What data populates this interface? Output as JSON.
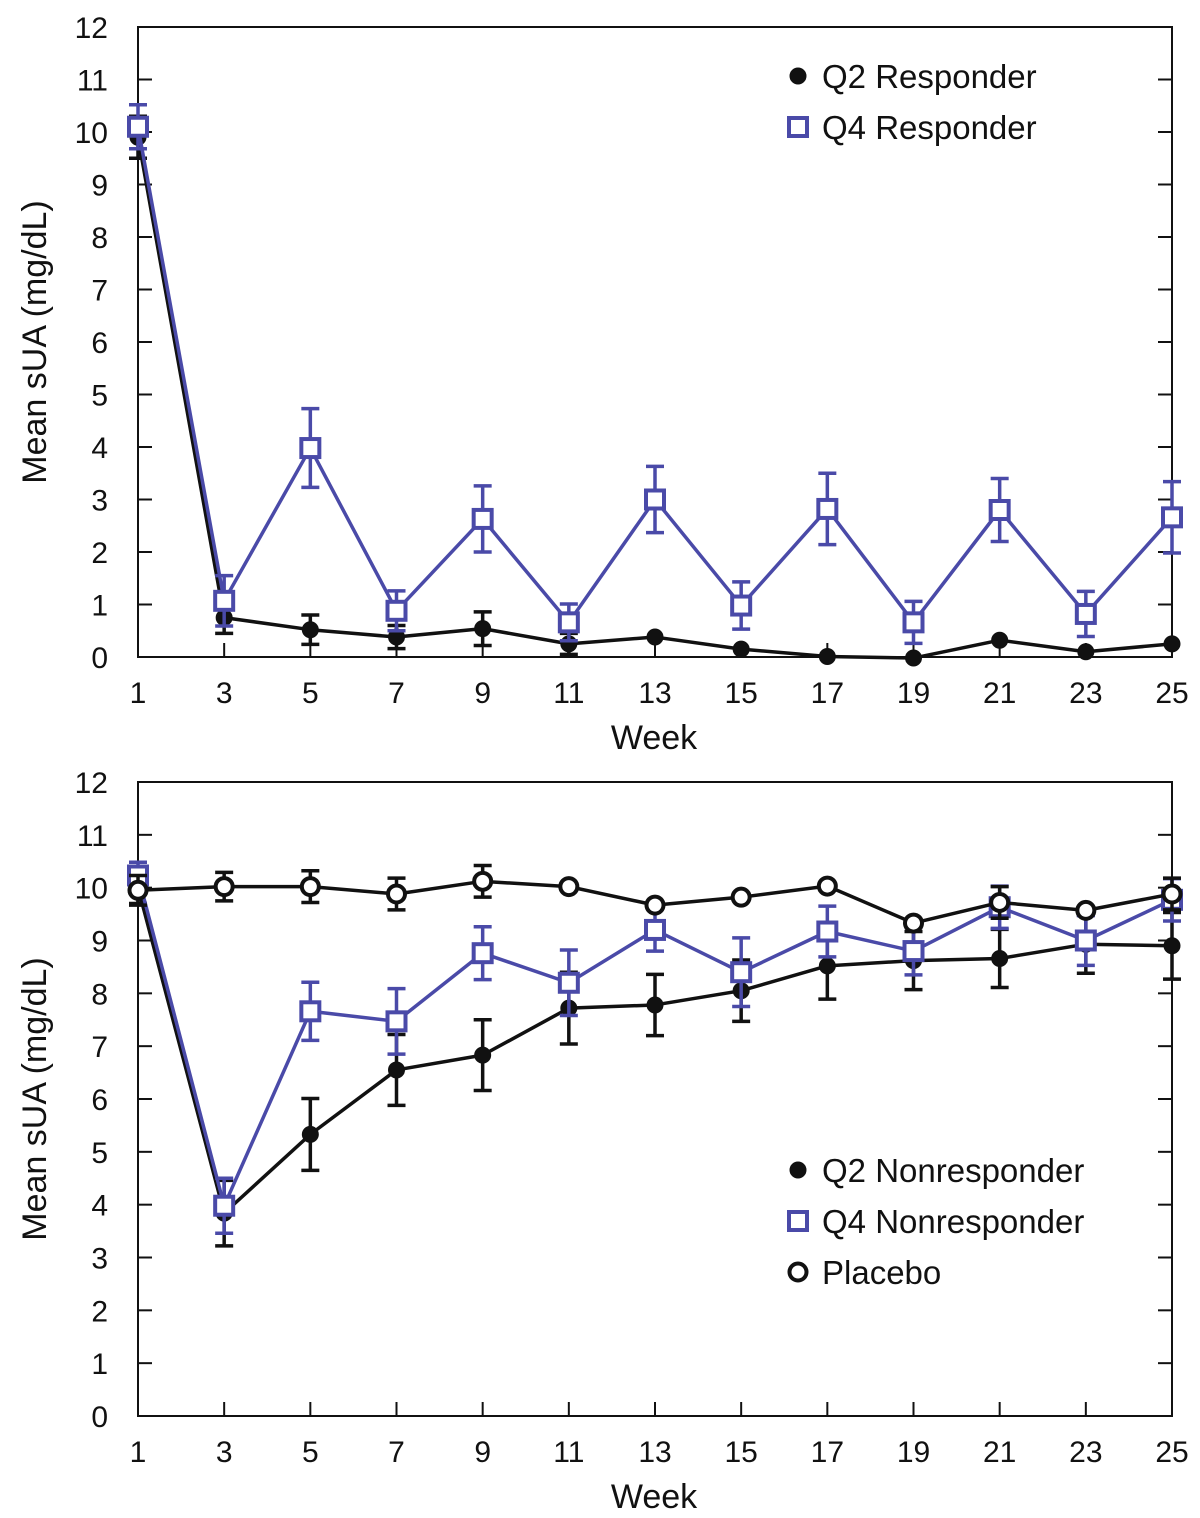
{
  "colors": {
    "black": "#111111",
    "blue": "#4a4aa8"
  },
  "chart_data": [
    {
      "type": "line",
      "title": "",
      "xlabel": "Week",
      "ylabel": "Mean sUA (mg/dL)",
      "xlim": [
        1,
        25
      ],
      "ylim": [
        0,
        12
      ],
      "xticks": [
        1,
        3,
        5,
        7,
        9,
        11,
        13,
        15,
        17,
        19,
        21,
        23,
        25
      ],
      "yticks": [
        0,
        1,
        2,
        3,
        4,
        5,
        6,
        7,
        8,
        9,
        10,
        11,
        12
      ],
      "grid": false,
      "legend_position": "top-right",
      "series": [
        {
          "name": "Q2 Responder",
          "marker": "filled-circle",
          "color": "#111111",
          "x": [
            1,
            3,
            5,
            7,
            9,
            11,
            13,
            15,
            17,
            19,
            21,
            23,
            25
          ],
          "y": [
            9.9,
            0.75,
            0.52,
            0.38,
            0.54,
            0.25,
            0.38,
            0.15,
            0.01,
            -0.02,
            0.32,
            0.1,
            0.25
          ],
          "error_up": [
            0.4,
            0.3,
            0.28,
            0.22,
            0.32,
            0.2,
            0,
            0,
            0,
            0,
            0,
            0,
            0
          ],
          "error_down": [
            0.4,
            0.3,
            0.28,
            0.22,
            0.32,
            0.2,
            0,
            0,
            0,
            0,
            0,
            0,
            0
          ]
        },
        {
          "name": "Q4 Responder",
          "marker": "open-square",
          "color": "#4a4aa8",
          "x": [
            1,
            3,
            5,
            7,
            9,
            11,
            13,
            15,
            17,
            19,
            21,
            23,
            25
          ],
          "y": [
            10.1,
            1.07,
            3.98,
            0.88,
            2.63,
            0.66,
            3.0,
            0.98,
            2.82,
            0.66,
            2.8,
            0.82,
            2.66
          ],
          "error_up": [
            0.42,
            0.48,
            0.75,
            0.38,
            0.63,
            0.35,
            0.63,
            0.45,
            0.68,
            0.4,
            0.6,
            0.43,
            0.68
          ],
          "error_down": [
            0.42,
            0.48,
            0.75,
            0.38,
            0.63,
            0.35,
            0.63,
            0.45,
            0.68,
            0.4,
            0.6,
            0.43,
            0.68
          ]
        }
      ]
    },
    {
      "type": "line",
      "title": "",
      "xlabel": "Week",
      "ylabel": "Mean sUA (mg/dL)",
      "xlim": [
        1,
        25
      ],
      "ylim": [
        0,
        12
      ],
      "xticks": [
        1,
        3,
        5,
        7,
        9,
        11,
        13,
        15,
        17,
        19,
        21,
        23,
        25
      ],
      "yticks": [
        0,
        1,
        2,
        3,
        4,
        5,
        6,
        7,
        8,
        9,
        10,
        11,
        12
      ],
      "grid": false,
      "legend_position": "bottom-right",
      "series": [
        {
          "name": "Q2 Nonresponder",
          "marker": "filled-circle",
          "color": "#111111",
          "x": [
            1,
            3,
            5,
            7,
            9,
            11,
            13,
            15,
            17,
            19,
            21,
            23,
            25
          ],
          "y": [
            10.0,
            3.84,
            5.33,
            6.55,
            6.83,
            7.72,
            7.78,
            8.05,
            8.52,
            8.62,
            8.66,
            8.93,
            8.9
          ],
          "error_up": [
            0.3,
            0.62,
            0.68,
            0.67,
            0.67,
            0.68,
            0.58,
            0.58,
            0.63,
            0.55,
            0.55,
            0.55,
            0.63
          ],
          "error_down": [
            0.3,
            0.62,
            0.68,
            0.67,
            0.67,
            0.68,
            0.58,
            0.58,
            0.63,
            0.55,
            0.55,
            0.55,
            0.63
          ]
        },
        {
          "name": "Q4 Nonresponder",
          "marker": "open-square",
          "color": "#4a4aa8",
          "x": [
            1,
            3,
            5,
            7,
            9,
            11,
            13,
            15,
            17,
            19,
            21,
            23,
            25
          ],
          "y": [
            10.23,
            3.98,
            7.66,
            7.47,
            8.76,
            8.2,
            9.2,
            8.4,
            9.17,
            8.8,
            9.63,
            9.0,
            9.77
          ],
          "error_up": [
            0.25,
            0.52,
            0.55,
            0.62,
            0.5,
            0.62,
            0.4,
            0.65,
            0.48,
            0.45,
            0.4,
            0.47,
            0.4
          ],
          "error_down": [
            0.25,
            0.52,
            0.55,
            0.62,
            0.5,
            0.62,
            0.4,
            0.65,
            0.48,
            0.45,
            0.4,
            0.47,
            0.4
          ]
        },
        {
          "name": "Placebo",
          "marker": "open-circle",
          "color": "#111111",
          "x": [
            1,
            3,
            5,
            7,
            9,
            11,
            13,
            15,
            17,
            19,
            21,
            23,
            25
          ],
          "y": [
            9.95,
            10.02,
            10.02,
            9.88,
            10.12,
            10.02,
            9.67,
            9.82,
            10.03,
            9.33,
            9.72,
            9.57,
            9.88
          ],
          "error_up": [
            0.28,
            0.27,
            0.3,
            0.3,
            0.3,
            0,
            0,
            0,
            0,
            0,
            0.3,
            0,
            0.3
          ],
          "error_down": [
            0.28,
            0.27,
            0.3,
            0.3,
            0.3,
            0,
            0,
            0,
            0,
            0,
            0.3,
            0,
            0.3
          ]
        }
      ]
    }
  ]
}
